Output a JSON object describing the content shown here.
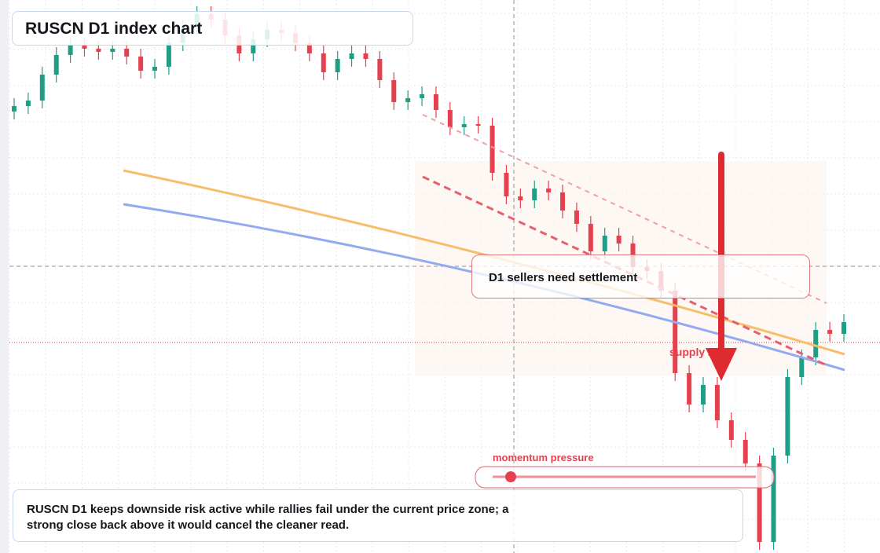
{
  "chart_data": {
    "type": "candlestick",
    "title": "RUSCN D1 index chart",
    "open": [
      115.8,
      116.5,
      117.2,
      120.5,
      123,
      124.2,
      123.8,
      123.4,
      123.8,
      122.8,
      121,
      121.5,
      124.5,
      126.5,
      128.2,
      127.5,
      125.5,
      123.2,
      125,
      126.2,
      125.8,
      124.5,
      123.2,
      120.8,
      122.5,
      123.2,
      122.5,
      119.8,
      117,
      117.5,
      118,
      116,
      113.8,
      114.2,
      114,
      108,
      105,
      104.5,
      106,
      105.5,
      103.2,
      101.5,
      98,
      100,
      99,
      96,
      95.5,
      93,
      82.5,
      78.5,
      81,
      76.5,
      74,
      71,
      61,
      72,
      82,
      84.5,
      88,
      87.5
    ],
    "high": [
      117.5,
      118.2,
      121.5,
      124,
      125.2,
      125.2,
      124.8,
      124.8,
      124.8,
      123.8,
      122.5,
      125.5,
      127.5,
      129.2,
      129.2,
      128.5,
      126.5,
      126,
      127.2,
      127.2,
      126.8,
      125.5,
      124.2,
      123.5,
      124.2,
      124.2,
      123.5,
      120.8,
      118.5,
      119,
      119,
      117,
      115.2,
      115.2,
      115,
      109,
      106,
      107,
      107,
      106.5,
      104.2,
      102.5,
      101,
      101,
      100,
      97,
      96.5,
      94,
      83.5,
      82,
      82,
      77.5,
      75,
      72,
      73,
      83,
      85.5,
      89,
      89,
      90
    ],
    "low": [
      114.8,
      115.5,
      116.2,
      119.5,
      122,
      122.8,
      122.4,
      122.4,
      121.8,
      120,
      120,
      120.5,
      123.5,
      125.5,
      126.5,
      124.5,
      122.2,
      122.2,
      124,
      124.8,
      123.5,
      122.2,
      119.8,
      119.8,
      121.5,
      121.5,
      118.8,
      116,
      116,
      116.5,
      115,
      112.8,
      112.8,
      113,
      107,
      104,
      103.5,
      103.5,
      104.5,
      102.2,
      100.5,
      97,
      97,
      98,
      95,
      94.5,
      92,
      81.5,
      77.5,
      77.5,
      75.5,
      73,
      70,
      60,
      60,
      71,
      81,
      83.5,
      86.5,
      86.5
    ],
    "close": [
      116.5,
      117.2,
      120.5,
      123,
      124.2,
      123.8,
      123.4,
      123.8,
      122.8,
      121,
      121.5,
      124.5,
      126.5,
      128.2,
      127.5,
      125.5,
      123.2,
      125,
      126.2,
      125.8,
      124.5,
      123.2,
      120.8,
      122.5,
      123.2,
      122.5,
      119.8,
      117,
      117.5,
      118,
      116,
      113.8,
      114.2,
      114,
      108,
      105,
      104.5,
      106,
      105.5,
      103.2,
      101.5,
      98,
      100,
      99,
      96,
      95.5,
      93,
      82.5,
      78.5,
      81,
      76.5,
      74,
      71,
      61,
      72,
      82,
      84.5,
      88,
      87.5,
      89
    ],
    "ylim": [
      59.6,
      130
    ],
    "up_color": "#1f9e86",
    "down_color": "#e5404e",
    "grid": true,
    "callout": "D1 sellers need settlement",
    "zone_label": "supply zone",
    "momentum_label": "momentum pressure",
    "summary": "RUSCN D1 keeps downside risk active while rallies fail under the current price zone; a strong close back above it would cancel the cleaner read."
  }
}
